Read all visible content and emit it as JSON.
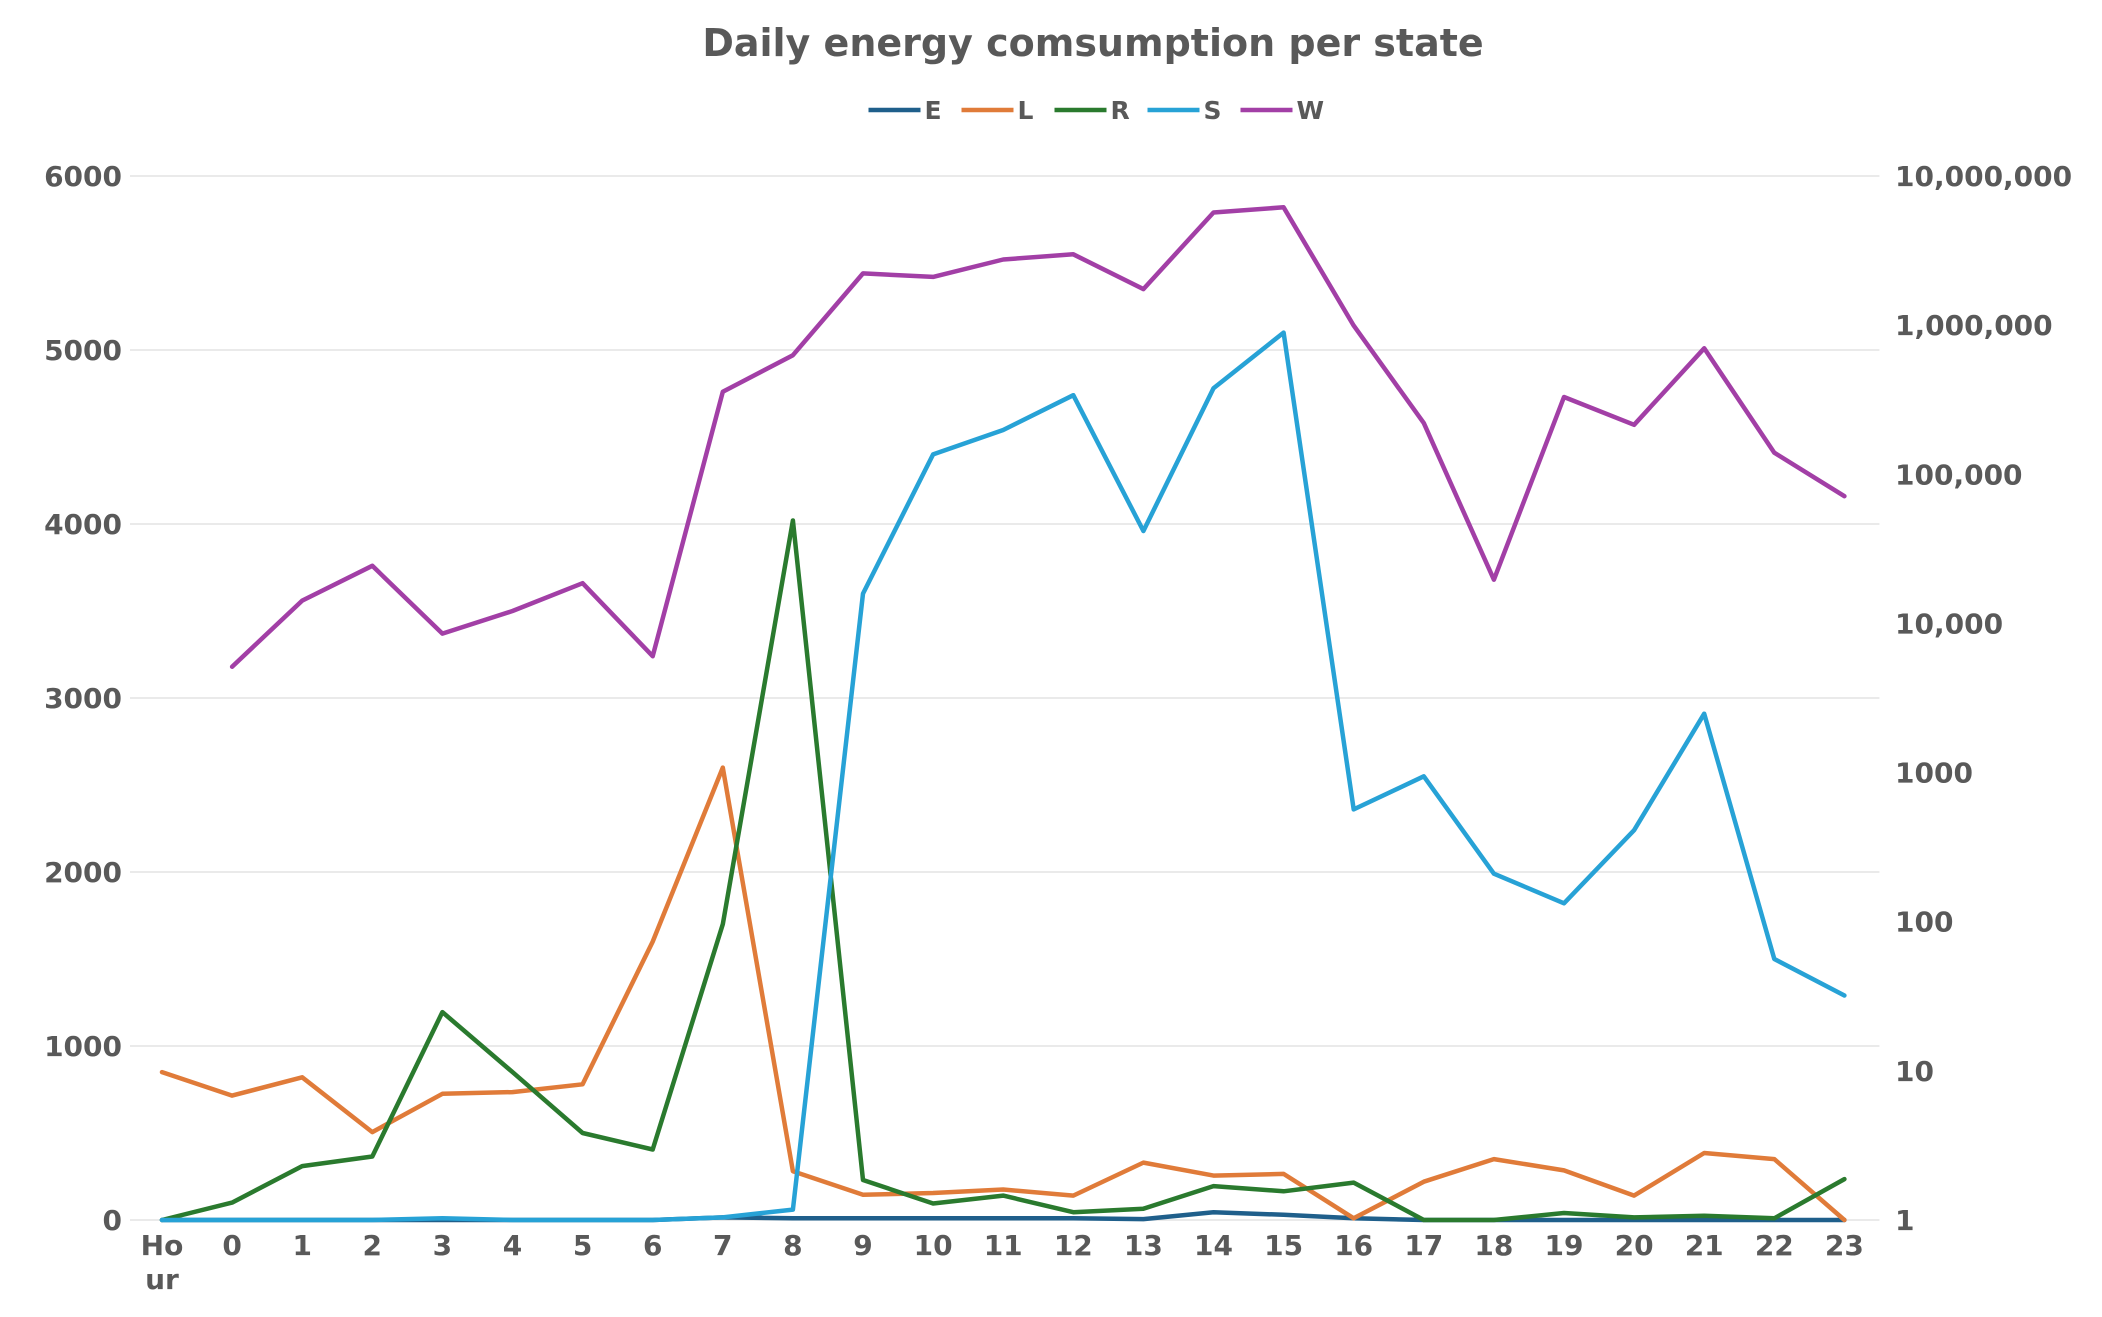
{
  "chart_data": {
    "type": "line",
    "title": "Daily energy comsumption per state",
    "categories": [
      "Ho ur",
      "0",
      "1",
      "2",
      "3",
      "4",
      "5",
      "6",
      "7",
      "8",
      "9",
      "10",
      "11",
      "12",
      "13",
      "14",
      "15",
      "16",
      "17",
      "18",
      "19",
      "20",
      "21",
      "22",
      "23"
    ],
    "category_lines": [
      [
        "Ho",
        "ur"
      ],
      [
        "0"
      ],
      [
        "1"
      ],
      [
        "2"
      ],
      [
        "3"
      ],
      [
        "4"
      ],
      [
        "5"
      ],
      [
        "6"
      ],
      [
        "7"
      ],
      [
        "8"
      ],
      [
        "9"
      ],
      [
        "10"
      ],
      [
        "11"
      ],
      [
        "12"
      ],
      [
        "13"
      ],
      [
        "14"
      ],
      [
        "15"
      ],
      [
        "16"
      ],
      [
        "17"
      ],
      [
        "18"
      ],
      [
        "19"
      ],
      [
        "20"
      ],
      [
        "21"
      ],
      [
        "22"
      ],
      [
        "23"
      ]
    ],
    "y_left": {
      "ticks": [
        "0",
        "1000",
        "2000",
        "3000",
        "4000",
        "5000",
        "6000"
      ],
      "range": [
        0,
        6000
      ]
    },
    "y_right": {
      "ticks": [
        "1",
        "10",
        "100",
        "1000",
        "10,000",
        "100,000",
        "1,000,000",
        "10,000,000"
      ],
      "scale": "log",
      "range": [
        1,
        10000000
      ]
    },
    "grid": true,
    "legend_position": "top-center",
    "series": [
      {
        "name": "E",
        "color": "#1f5f8b",
        "axis": "left",
        "values": [
          0,
          0,
          0,
          0,
          0,
          0,
          0,
          0,
          15,
          10,
          10,
          10,
          10,
          10,
          5,
          45,
          30,
          10,
          0,
          0,
          0,
          0,
          0,
          0,
          0
        ]
      },
      {
        "name": "L",
        "color": "#e07b39",
        "axis": "left",
        "values": [
          850,
          715,
          820,
          505,
          725,
          735,
          780,
          1600,
          2600,
          280,
          145,
          155,
          175,
          140,
          330,
          255,
          265,
          10,
          220,
          350,
          285,
          140,
          385,
          350,
          0
        ]
      },
      {
        "name": "R",
        "color": "#2a7a2e",
        "axis": "left",
        "values": [
          0,
          100,
          310,
          365,
          1195,
          850,
          500,
          405,
          1700,
          4020,
          230,
          95,
          140,
          45,
          65,
          195,
          165,
          215,
          0,
          0,
          40,
          15,
          25,
          10,
          235
        ]
      },
      {
        "name": "S",
        "color": "#27a2d6",
        "axis": "left",
        "values": [
          0,
          0,
          0,
          0,
          10,
          0,
          0,
          0,
          15,
          60,
          3600,
          4400,
          4540,
          4740,
          3960,
          4780,
          5100,
          2360,
          2550,
          1990,
          1820,
          2240,
          2910,
          1500,
          1290
        ]
      },
      {
        "name": "W",
        "color": "#a23fa6",
        "axis": "left",
        "values": [
          null,
          3180,
          3560,
          3760,
          3370,
          3500,
          3660,
          3240,
          4760,
          4970,
          5440,
          5420,
          5520,
          5550,
          5350,
          5790,
          5820,
          5140,
          4580,
          3680,
          4730,
          4570,
          5010,
          4410,
          4160
        ]
      }
    ]
  }
}
